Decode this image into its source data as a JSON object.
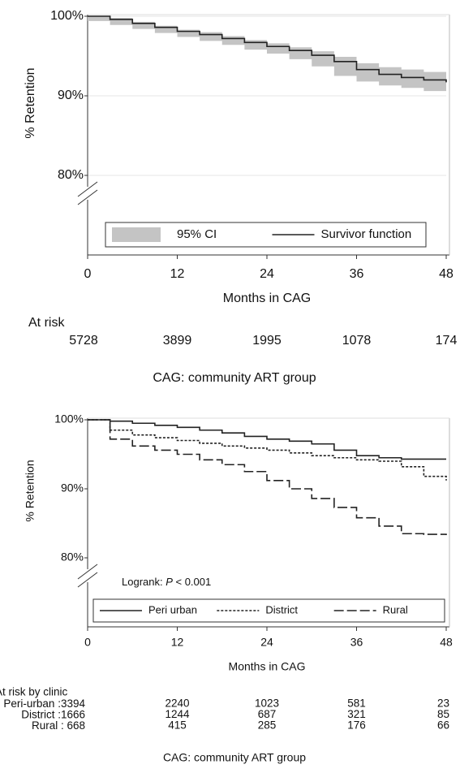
{
  "chart_data": [
    {
      "type": "line",
      "ylabel": "% Retention",
      "xlabel": "Months in CAG",
      "xlim": [
        0,
        48
      ],
      "xticks": [
        0,
        12,
        24,
        36,
        48
      ],
      "ylim": [
        70,
        100
      ],
      "yticks": [
        {
          "value": 80,
          "label": "80%"
        },
        {
          "value": 90,
          "label": "90%"
        },
        {
          "value": 100,
          "label": "100%"
        }
      ],
      "grid": true,
      "legend": "bottom",
      "x": [
        0,
        3,
        6,
        9,
        12,
        15,
        18,
        21,
        24,
        27,
        30,
        33,
        36,
        39,
        42,
        45,
        48
      ],
      "band": {
        "name": "95% CI",
        "color": "#c4c4c4",
        "lower": [
          100,
          99.4,
          98.9,
          98.4,
          97.9,
          97.4,
          96.9,
          96.4,
          95.8,
          95.3,
          94.6,
          93.7,
          92.5,
          91.8,
          91.3,
          91.0,
          90.6
        ],
        "upper": [
          100,
          99.8,
          99.3,
          98.8,
          98.3,
          98.0,
          97.5,
          97.0,
          96.6,
          96.1,
          95.6,
          94.9,
          94.1,
          93.6,
          93.3,
          93.0,
          92.8
        ]
      },
      "series": [
        {
          "name": "Survivor function",
          "color": "#222222",
          "dash": "solid",
          "values": [
            100,
            99.6,
            99.1,
            98.6,
            98.1,
            97.7,
            97.2,
            96.7,
            96.2,
            95.7,
            95.1,
            94.3,
            93.3,
            92.7,
            92.3,
            92.0,
            91.7
          ]
        }
      ],
      "at_risk": {
        "title": "At risk",
        "rows": [
          {
            "values": [
              5728,
              3899,
              1995,
              1078,
              174
            ]
          }
        ]
      },
      "note": "CAG: community ART group"
    },
    {
      "type": "line",
      "ylabel": "% Retention",
      "xlabel": "Months in CAG",
      "xlim": [
        0,
        48
      ],
      "xticks": [
        0,
        12,
        24,
        36,
        48
      ],
      "ylim": [
        70,
        100
      ],
      "yticks": [
        {
          "value": 80,
          "label": "80%"
        },
        {
          "value": 90,
          "label": "90%"
        },
        {
          "value": 100,
          "label": "100%"
        }
      ],
      "grid": false,
      "legend": "bottom",
      "annotation": [
        "Logrank: ",
        "P",
        " < 0.001"
      ],
      "x": [
        0,
        3,
        6,
        9,
        12,
        15,
        18,
        21,
        24,
        27,
        30,
        33,
        36,
        39,
        42,
        45,
        48
      ],
      "series": [
        {
          "name": "Peri urban",
          "color": "#222222",
          "dash": "solid",
          "values": [
            100,
            99.8,
            99.5,
            99.2,
            98.9,
            98.5,
            98.1,
            97.6,
            97.2,
            96.9,
            96.5,
            95.6,
            94.8,
            94.5,
            94.3,
            94.3,
            94.3
          ]
        },
        {
          "name": "District",
          "color": "#222222",
          "dash": "dotted",
          "values": [
            100,
            98.5,
            97.8,
            97.4,
            97.0,
            96.6,
            96.2,
            95.9,
            95.6,
            95.2,
            94.8,
            94.5,
            94.2,
            94.0,
            93.2,
            91.8,
            91.2
          ]
        },
        {
          "name": "Rural",
          "color": "#222222",
          "dash": "dashed",
          "values": [
            100,
            97.2,
            96.2,
            95.6,
            95.0,
            94.2,
            93.5,
            92.5,
            91.2,
            90.0,
            88.6,
            87.3,
            85.8,
            84.6,
            83.5,
            83.4,
            83.3
          ]
        }
      ],
      "at_risk": {
        "title": "At risk by clinic",
        "rows": [
          {
            "label": "Peri-urban :",
            "values": [
              3394,
              2240,
              1023,
              581,
              23
            ]
          },
          {
            "label": "District :",
            "values": [
              1666,
              1244,
              687,
              321,
              85
            ]
          },
          {
            "label": "Rural : ",
            "values": [
              668,
              415,
              285,
              176,
              66
            ]
          }
        ]
      },
      "note": "CAG: community ART group"
    }
  ]
}
